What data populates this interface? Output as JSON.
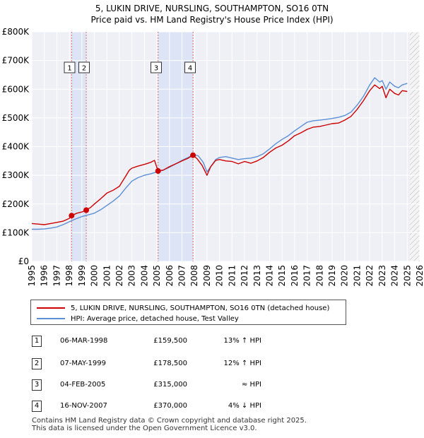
{
  "header": {
    "title": "5, LUKIN DRIVE, NURSLING, SOUTHAMPTON, SO16 0TN",
    "subtitle": "Price paid vs. HM Land Registry's House Price Index (HPI)"
  },
  "chart_data": {
    "type": "line",
    "title": "5, LUKIN DRIVE, NURSLING, SOUTHAMPTON, SO16 0TN",
    "xlim": [
      1995,
      2026
    ],
    "ylim": [
      0,
      800000
    ],
    "x_ticks": [
      "1995",
      "1996",
      "1997",
      "1998",
      "1999",
      "2000",
      "2001",
      "2002",
      "2003",
      "2004",
      "2005",
      "2006",
      "2007",
      "2008",
      "2009",
      "2010",
      "2011",
      "2012",
      "2013",
      "2014",
      "2015",
      "2016",
      "2017",
      "2018",
      "2019",
      "2020",
      "2021",
      "2022",
      "2023",
      "2024",
      "2025",
      "2026"
    ],
    "y_ticks": [
      {
        "value": 0,
        "label": "£0"
      },
      {
        "value": 100000,
        "label": "£100K"
      },
      {
        "value": 200000,
        "label": "£200K"
      },
      {
        "value": 300000,
        "label": "£300K"
      },
      {
        "value": 400000,
        "label": "£400K"
      },
      {
        "value": 500000,
        "label": "£500K"
      },
      {
        "value": 600000,
        "label": "£600K"
      },
      {
        "value": 700000,
        "label": "£700K"
      },
      {
        "value": 800000,
        "label": "£800K"
      }
    ],
    "series": [
      {
        "name": "5, LUKIN DRIVE, NURSLING, SOUTHAMPTON, SO16 0TN (detached house)",
        "color": "#cc0000",
        "x": [
          1995.0,
          1995.5,
          1996.0,
          1996.5,
          1997.0,
          1997.5,
          1998.0,
          1998.18,
          1998.6,
          1999.0,
          1999.35,
          1999.7,
          2000.0,
          2000.5,
          2001.0,
          2001.5,
          2002.0,
          2002.4,
          2002.8,
          2003.0,
          2003.5,
          2004.0,
          2004.5,
          2004.8,
          2005.09,
          2005.5,
          2006.0,
          2006.5,
          2007.0,
          2007.5,
          2007.88,
          2008.2,
          2008.6,
          2009.0,
          2009.3,
          2009.7,
          2010.0,
          2010.5,
          2011.0,
          2011.5,
          2012.0,
          2012.5,
          2013.0,
          2013.5,
          2014.0,
          2014.5,
          2015.0,
          2015.5,
          2016.0,
          2016.5,
          2017.0,
          2017.5,
          2018.0,
          2018.5,
          2019.0,
          2019.5,
          2020.0,
          2020.5,
          2021.0,
          2021.5,
          2022.0,
          2022.4,
          2022.8,
          2023.0,
          2023.3,
          2023.6,
          2024.0,
          2024.3,
          2024.6,
          2025.0
        ],
        "values": [
          132000,
          130000,
          128000,
          132000,
          136000,
          140000,
          150000,
          159500,
          168000,
          172000,
          178500,
          188000,
          200000,
          218000,
          238000,
          248000,
          262000,
          290000,
          318000,
          325000,
          332000,
          338000,
          345000,
          352000,
          315000,
          318000,
          330000,
          340000,
          350000,
          360000,
          370000,
          358000,
          335000,
          300000,
          330000,
          352000,
          355000,
          350000,
          348000,
          340000,
          348000,
          342000,
          350000,
          362000,
          380000,
          395000,
          405000,
          420000,
          438000,
          448000,
          460000,
          468000,
          470000,
          475000,
          480000,
          482000,
          492000,
          505000,
          530000,
          560000,
          595000,
          615000,
          602000,
          610000,
          570000,
          600000,
          585000,
          580000,
          595000,
          592000
        ]
      },
      {
        "name": "HPI: Average price, detached house, Test Valley",
        "color": "#5b8fd6",
        "x": [
          1995.0,
          1995.5,
          1996.0,
          1996.5,
          1997.0,
          1997.5,
          1998.0,
          1998.5,
          1999.0,
          1999.5,
          2000.0,
          2000.5,
          2001.0,
          2001.5,
          2002.0,
          2002.5,
          2003.0,
          2003.5,
          2004.0,
          2004.5,
          2005.0,
          2005.5,
          2006.0,
          2006.5,
          2007.0,
          2007.5,
          2007.88,
          2008.3,
          2008.7,
          2009.0,
          2009.3,
          2009.7,
          2010.0,
          2010.5,
          2011.0,
          2011.5,
          2012.0,
          2012.5,
          2013.0,
          2013.5,
          2014.0,
          2014.5,
          2015.0,
          2015.5,
          2016.0,
          2016.5,
          2017.0,
          2017.5,
          2018.0,
          2018.5,
          2019.0,
          2019.5,
          2020.0,
          2020.5,
          2021.0,
          2021.5,
          2022.0,
          2022.4,
          2022.8,
          2023.0,
          2023.3,
          2023.6,
          2024.0,
          2024.3,
          2024.6,
          2025.0
        ],
        "values": [
          112000,
          112000,
          113000,
          116000,
          120000,
          128000,
          138000,
          148000,
          156000,
          162000,
          168000,
          180000,
          195000,
          210000,
          228000,
          255000,
          280000,
          292000,
          300000,
          305000,
          312000,
          318000,
          328000,
          340000,
          352000,
          362000,
          372000,
          368000,
          345000,
          312000,
          330000,
          355000,
          362000,
          365000,
          360000,
          355000,
          358000,
          360000,
          365000,
          375000,
          392000,
          410000,
          425000,
          438000,
          455000,
          470000,
          485000,
          490000,
          492000,
          495000,
          498000,
          502000,
          508000,
          520000,
          545000,
          575000,
          615000,
          640000,
          625000,
          630000,
          600000,
          625000,
          610000,
          605000,
          615000,
          620000
        ]
      }
    ],
    "transactions": [
      {
        "id": "1",
        "year": 1998.18,
        "price": 159500,
        "date": "06-MAR-1998",
        "price_label": "£159,500",
        "hpi": "13% ↑ HPI"
      },
      {
        "id": "2",
        "year": 1999.35,
        "price": 178500,
        "date": "07-MAY-1999",
        "price_label": "£178,500",
        "hpi": "12% ↑ HPI"
      },
      {
        "id": "3",
        "year": 2005.09,
        "price": 315000,
        "date": "04-FEB-2005",
        "price_label": "£315,000",
        "hpi": "≈ HPI"
      },
      {
        "id": "4",
        "year": 2007.88,
        "price": 370000,
        "date": "16-NOV-2007",
        "price_label": "£370,000",
        "hpi": "4% ↓ HPI"
      }
    ],
    "shaded_periods": [
      [
        1998.18,
        1999.35
      ],
      [
        2005.09,
        2007.88
      ]
    ],
    "forecast_start": 2025.2,
    "grid": true
  },
  "legend": {
    "property_label": "5, LUKIN DRIVE, NURSLING, SOUTHAMPTON, SO16 0TN (detached house)",
    "hpi_label": "HPI: Average price, detached house, Test Valley",
    "property_color": "#cc0000",
    "hpi_color": "#5b8fd6"
  },
  "footer": {
    "line1": "Contains HM Land Registry data © Crown copyright and database right 2025.",
    "line2": "This data is licensed under the Open Government Licence v3.0."
  }
}
